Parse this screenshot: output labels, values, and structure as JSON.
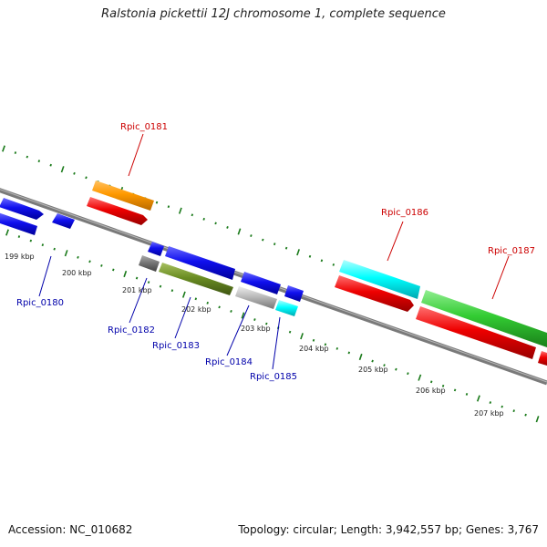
{
  "title": "Ralstonia pickettii 12J chromosome 1, complete sequence",
  "footer": {
    "accession": "Accession: NC_010682",
    "summary": "Topology: circular; Length: 3,942,557 bp; Genes: 3,767"
  },
  "colors": {
    "backbone": "#7a7a7a",
    "tick": "#1a7a1a",
    "label_forward": "#cc0000",
    "label_reverse": "#0000aa"
  },
  "scale_labels": [
    "199 kbp",
    "200 kbp",
    "201 kbp",
    "202 kbp",
    "203 kbp",
    "204 kbp",
    "205 kbp",
    "206 kbp",
    "207 kbp"
  ],
  "genes": [
    {
      "label": "Rpic_0180",
      "strand": "reverse"
    },
    {
      "label": "Rpic_0181",
      "strand": "forward"
    },
    {
      "label": "Rpic_0182",
      "strand": "reverse"
    },
    {
      "label": "Rpic_0183",
      "strand": "reverse"
    },
    {
      "label": "Rpic_0184",
      "strand": "reverse"
    },
    {
      "label": "Rpic_0185",
      "strand": "reverse"
    },
    {
      "label": "Rpic_0186",
      "strand": "forward"
    },
    {
      "label": "Rpic_0187",
      "strand": "forward"
    }
  ]
}
